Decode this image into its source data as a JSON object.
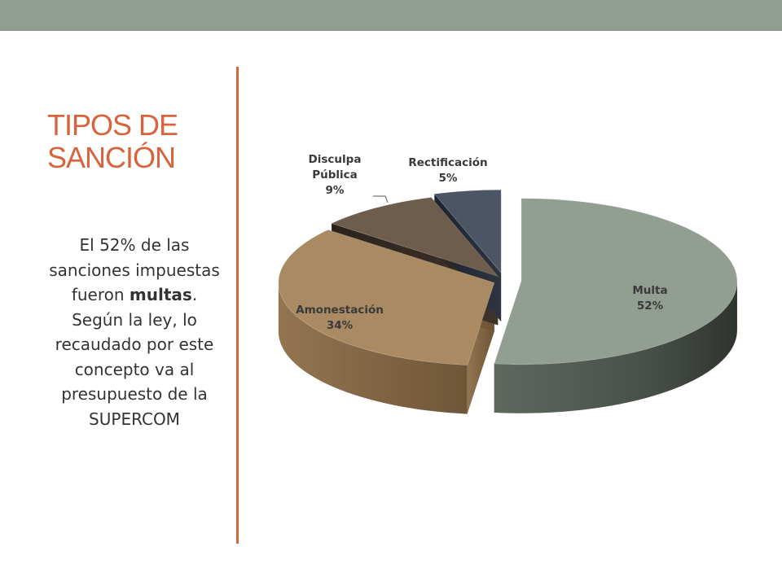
{
  "slide": {
    "title": "TIPOS DE SANCIÓN",
    "body_before": "El 52% de las sanciones impuestas fueron ",
    "body_bold": "multas",
    "body_after": ". Según la ley, lo recaudado por este concepto va al presupuesto de la SUPERCOM"
  },
  "colors": {
    "topbar": "#909d90",
    "accent": "#d8643e",
    "text": "#333333"
  },
  "chart_data": {
    "type": "pie",
    "style": "3d-exploded",
    "title": "",
    "slices": [
      {
        "label": "Multa",
        "value": 52,
        "value_label": "52%",
        "color": "#929e92"
      },
      {
        "label": "Amonestación",
        "value": 34,
        "value_label": "34%",
        "color": "#a98a62"
      },
      {
        "label_lines": [
          "Disculpa",
          "Pública"
        ],
        "value": 9,
        "value_label": "9%",
        "color": "#6e5c4c"
      },
      {
        "label": "Rectificación",
        "value": 5,
        "value_label": "5%",
        "color": "#4b5565"
      }
    ]
  }
}
